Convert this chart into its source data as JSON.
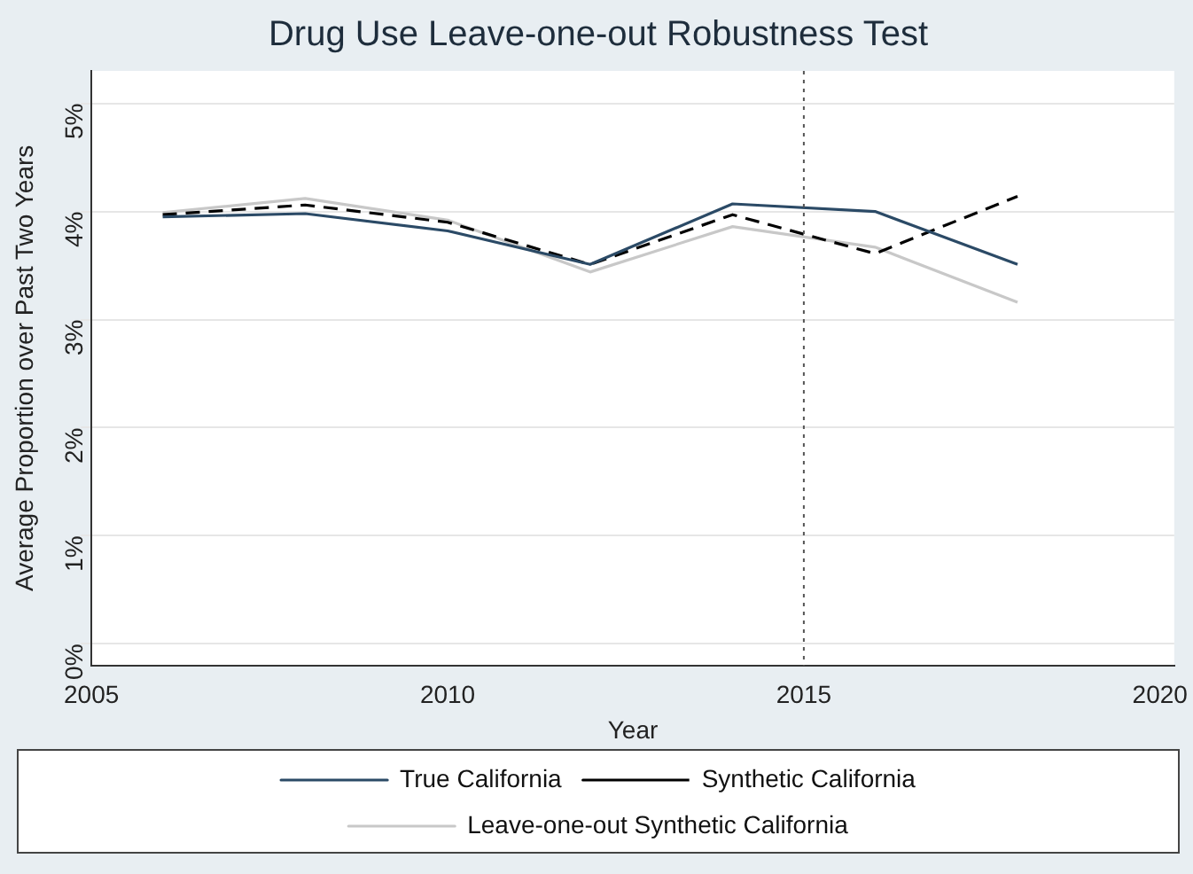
{
  "chart_data": {
    "type": "line",
    "title": "Drug Use Leave-one-out Robustness Test",
    "xlabel": "Year",
    "ylabel": "Average Proportion over Past Two Years",
    "x": [
      2006,
      2008,
      2010,
      2012,
      2014,
      2016,
      2018
    ],
    "series": [
      {
        "name": "True California",
        "color": "#2b4a66",
        "values": [
          3.95,
          3.98,
          3.82,
          3.51,
          4.07,
          4.0,
          3.51
        ]
      },
      {
        "name": "Synthetic California",
        "color": "#000000",
        "line_style": "dashed",
        "values": [
          3.97,
          4.06,
          3.9,
          3.51,
          3.97,
          3.61,
          4.14
        ]
      },
      {
        "name": "Leave-one-out Synthetic California",
        "color": "#c8c8c8",
        "values": [
          3.99,
          4.12,
          3.92,
          3.44,
          3.86,
          3.67,
          3.16
        ]
      }
    ],
    "xlim": [
      2005,
      2020.2
    ],
    "xticks": [
      2005,
      2010,
      2015,
      2020
    ],
    "ylim": [
      -0.2,
      5.3
    ],
    "yticks": [
      {
        "value": 0,
        "label": "0%"
      },
      {
        "value": 1,
        "label": "1%"
      },
      {
        "value": 2,
        "label": "2%"
      },
      {
        "value": 3,
        "label": "3%"
      },
      {
        "value": 4,
        "label": "4%"
      },
      {
        "value": 5,
        "label": "5%"
      }
    ],
    "ref_lines": [
      {
        "axis": "x",
        "value": 2015,
        "color": "#555555",
        "line_style": "dotted"
      }
    ],
    "grid": "y",
    "legend": "bottom",
    "marker": "none"
  }
}
